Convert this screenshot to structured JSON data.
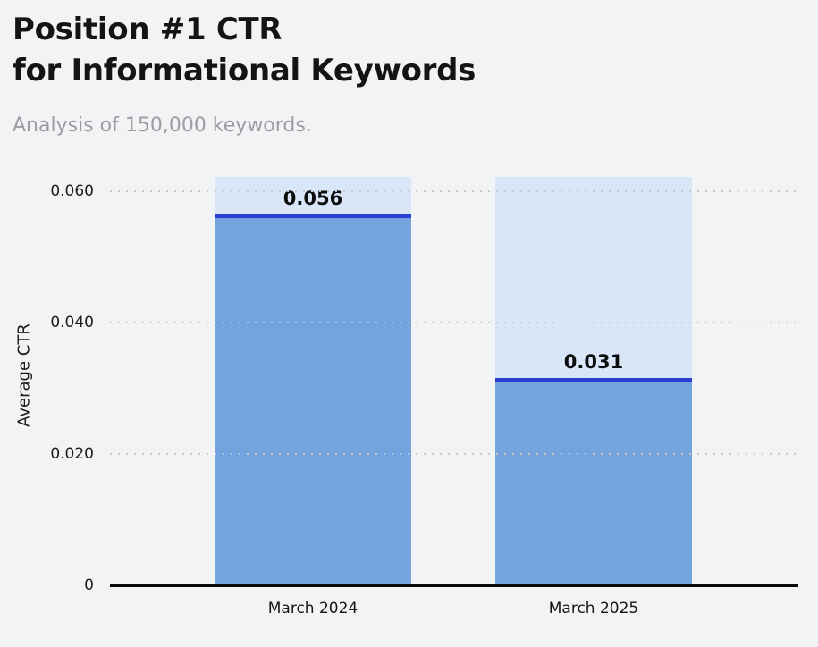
{
  "header": {
    "title_line1": "Position #1 CTR",
    "title_line2": "for Informational Keywords",
    "subtitle": "Analysis of 150,000 keywords."
  },
  "chart_data": {
    "type": "bar",
    "title": "Position #1 CTR for Informational Keywords",
    "subtitle": "Analysis of 150,000 keywords.",
    "categories": [
      "March 2024",
      "March 2025"
    ],
    "values": [
      0.056,
      0.031
    ],
    "value_labels": [
      "0.056",
      "0.031"
    ],
    "xlabel": "",
    "ylabel": "Average CTR",
    "ylim": [
      0,
      0.0622
    ],
    "yticks": [
      {
        "value": 0,
        "label": "0"
      },
      {
        "value": 0.02,
        "label": "0.020"
      },
      {
        "value": 0.04,
        "label": "0.040"
      },
      {
        "value": 0.06,
        "label": "0.060"
      }
    ],
    "grid": "horizontal-dotted",
    "legend": "none",
    "colors": {
      "background": "#f2f3f5",
      "bar_track": "#d9e6f8",
      "bar_fill": "#74a4de",
      "value_line": "#2b3fd1",
      "gridline": "#c7c9cc",
      "axis_line": "#0b0b0c",
      "title_text": "#141415",
      "subtitle_text": "#9b9ca1"
    }
  }
}
